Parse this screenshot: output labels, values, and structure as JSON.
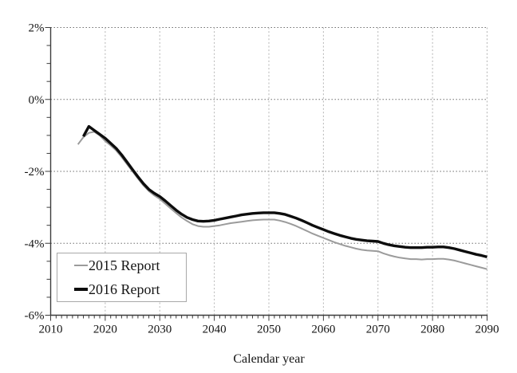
{
  "chart_data": {
    "type": "line",
    "title": "",
    "xlabel": "Calendar year",
    "ylabel": "",
    "xlim": [
      2010,
      2090
    ],
    "ylim": [
      -6,
      2
    ],
    "grid": {
      "horizontal": true,
      "vertical": true
    },
    "legend_position": "lower-left",
    "x_ticks": [
      {
        "label": "2010",
        "value": 2010
      },
      {
        "label": "2020",
        "value": 2020
      },
      {
        "label": "2030",
        "value": 2030
      },
      {
        "label": "2040",
        "value": 2040
      },
      {
        "label": "2050",
        "value": 2050
      },
      {
        "label": "2060",
        "value": 2060
      },
      {
        "label": "2070",
        "value": 2070
      },
      {
        "label": "2080",
        "value": 2080
      },
      {
        "label": "2090",
        "value": 2090
      }
    ],
    "y_ticks": [
      {
        "label": "2%",
        "value": 2
      },
      {
        "label": "0%",
        "value": 0
      },
      {
        "label": "-2%",
        "value": -2
      },
      {
        "label": "-4%",
        "value": -4
      },
      {
        "label": "-6%",
        "value": -6
      }
    ],
    "x_minor_step_years": 1,
    "y_minor_step_pct": 0.5,
    "colors": {
      "h_grid": "#6e6e6e",
      "v_grid": "#b5b5b5",
      "axis": "#3c3c3c",
      "text": "#141414"
    },
    "series": [
      {
        "name": "2015 Report",
        "color": "#9b9b9b",
        "stroke_width": 2,
        "points": [
          [
            2015,
            -1.25
          ],
          [
            2016,
            -1.05
          ],
          [
            2017,
            -0.93
          ],
          [
            2018,
            -0.9
          ],
          [
            2019,
            -1.0
          ],
          [
            2020,
            -1.16
          ],
          [
            2021,
            -1.28
          ],
          [
            2022,
            -1.42
          ],
          [
            2023,
            -1.6
          ],
          [
            2024,
            -1.8
          ],
          [
            2025,
            -2.0
          ],
          [
            2026,
            -2.2
          ],
          [
            2027,
            -2.39
          ],
          [
            2028,
            -2.55
          ],
          [
            2029,
            -2.67
          ],
          [
            2030,
            -2.77
          ],
          [
            2031,
            -2.9
          ],
          [
            2032,
            -3.03
          ],
          [
            2033,
            -3.16
          ],
          [
            2034,
            -3.28
          ],
          [
            2035,
            -3.38
          ],
          [
            2036,
            -3.47
          ],
          [
            2037,
            -3.52
          ],
          [
            2038,
            -3.54
          ],
          [
            2039,
            -3.54
          ],
          [
            2040,
            -3.52
          ],
          [
            2041,
            -3.5
          ],
          [
            2042,
            -3.47
          ],
          [
            2043,
            -3.44
          ],
          [
            2044,
            -3.42
          ],
          [
            2045,
            -3.4
          ],
          [
            2046,
            -3.38
          ],
          [
            2047,
            -3.36
          ],
          [
            2048,
            -3.35
          ],
          [
            2049,
            -3.34
          ],
          [
            2050,
            -3.34
          ],
          [
            2051,
            -3.34
          ],
          [
            2052,
            -3.37
          ],
          [
            2053,
            -3.41
          ],
          [
            2054,
            -3.46
          ],
          [
            2055,
            -3.52
          ],
          [
            2056,
            -3.59
          ],
          [
            2057,
            -3.66
          ],
          [
            2058,
            -3.73
          ],
          [
            2059,
            -3.79
          ],
          [
            2060,
            -3.85
          ],
          [
            2061,
            -3.91
          ],
          [
            2062,
            -3.97
          ],
          [
            2063,
            -4.02
          ],
          [
            2064,
            -4.07
          ],
          [
            2065,
            -4.11
          ],
          [
            2066,
            -4.15
          ],
          [
            2067,
            -4.18
          ],
          [
            2068,
            -4.2
          ],
          [
            2069,
            -4.21
          ],
          [
            2070,
            -4.22
          ],
          [
            2071,
            -4.28
          ],
          [
            2072,
            -4.33
          ],
          [
            2073,
            -4.37
          ],
          [
            2074,
            -4.4
          ],
          [
            2075,
            -4.42
          ],
          [
            2076,
            -4.44
          ],
          [
            2077,
            -4.44
          ],
          [
            2078,
            -4.45
          ],
          [
            2079,
            -4.44
          ],
          [
            2080,
            -4.44
          ],
          [
            2081,
            -4.43
          ],
          [
            2082,
            -4.43
          ],
          [
            2083,
            -4.45
          ],
          [
            2084,
            -4.48
          ],
          [
            2085,
            -4.52
          ],
          [
            2086,
            -4.56
          ],
          [
            2087,
            -4.6
          ],
          [
            2088,
            -4.64
          ],
          [
            2089,
            -4.68
          ],
          [
            2090,
            -4.72
          ]
        ]
      },
      {
        "name": "2016 Report",
        "color": "#0d0d0d",
        "stroke_width": 3.4,
        "points": [
          [
            2016,
            -1.03
          ],
          [
            2017,
            -0.75
          ],
          [
            2018,
            -0.86
          ],
          [
            2019,
            -0.97
          ],
          [
            2020,
            -1.08
          ],
          [
            2021,
            -1.22
          ],
          [
            2022,
            -1.36
          ],
          [
            2023,
            -1.54
          ],
          [
            2024,
            -1.74
          ],
          [
            2025,
            -1.95
          ],
          [
            2026,
            -2.15
          ],
          [
            2027,
            -2.34
          ],
          [
            2028,
            -2.5
          ],
          [
            2029,
            -2.61
          ],
          [
            2030,
            -2.7
          ],
          [
            2031,
            -2.82
          ],
          [
            2032,
            -2.95
          ],
          [
            2033,
            -3.08
          ],
          [
            2034,
            -3.19
          ],
          [
            2035,
            -3.28
          ],
          [
            2036,
            -3.34
          ],
          [
            2037,
            -3.38
          ],
          [
            2038,
            -3.39
          ],
          [
            2039,
            -3.38
          ],
          [
            2040,
            -3.36
          ],
          [
            2041,
            -3.33
          ],
          [
            2042,
            -3.3
          ],
          [
            2043,
            -3.27
          ],
          [
            2044,
            -3.24
          ],
          [
            2045,
            -3.21
          ],
          [
            2046,
            -3.19
          ],
          [
            2047,
            -3.17
          ],
          [
            2048,
            -3.16
          ],
          [
            2049,
            -3.15
          ],
          [
            2050,
            -3.15
          ],
          [
            2051,
            -3.15
          ],
          [
            2052,
            -3.17
          ],
          [
            2053,
            -3.2
          ],
          [
            2054,
            -3.25
          ],
          [
            2055,
            -3.3
          ],
          [
            2056,
            -3.36
          ],
          [
            2057,
            -3.43
          ],
          [
            2058,
            -3.5
          ],
          [
            2059,
            -3.56
          ],
          [
            2060,
            -3.62
          ],
          [
            2061,
            -3.68
          ],
          [
            2062,
            -3.73
          ],
          [
            2063,
            -3.78
          ],
          [
            2064,
            -3.82
          ],
          [
            2065,
            -3.86
          ],
          [
            2066,
            -3.89
          ],
          [
            2067,
            -3.91
          ],
          [
            2068,
            -3.93
          ],
          [
            2069,
            -3.94
          ],
          [
            2070,
            -3.95
          ],
          [
            2071,
            -4.0
          ],
          [
            2072,
            -4.04
          ],
          [
            2073,
            -4.07
          ],
          [
            2074,
            -4.09
          ],
          [
            2075,
            -4.11
          ],
          [
            2076,
            -4.12
          ],
          [
            2077,
            -4.12
          ],
          [
            2078,
            -4.12
          ],
          [
            2079,
            -4.11
          ],
          [
            2080,
            -4.11
          ],
          [
            2081,
            -4.1
          ],
          [
            2082,
            -4.1
          ],
          [
            2083,
            -4.12
          ],
          [
            2084,
            -4.15
          ],
          [
            2085,
            -4.19
          ],
          [
            2086,
            -4.23
          ],
          [
            2087,
            -4.27
          ],
          [
            2088,
            -4.31
          ],
          [
            2089,
            -4.34
          ],
          [
            2090,
            -4.38
          ]
        ]
      }
    ]
  }
}
